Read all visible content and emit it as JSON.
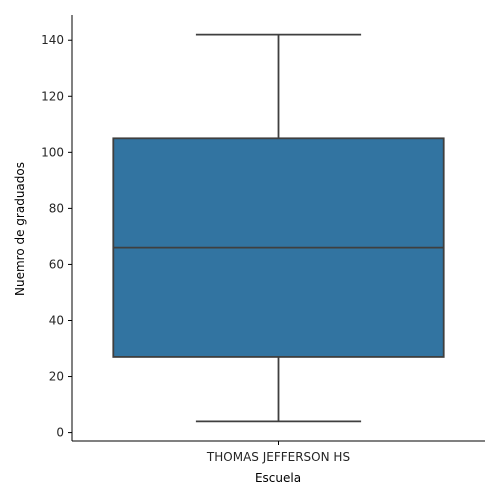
{
  "chart_data": {
    "type": "box",
    "xlabel": "Escuela",
    "ylabel": "Nuemro de graduados",
    "ylim": [
      -3,
      149
    ],
    "yticks": [
      0,
      20,
      40,
      60,
      80,
      100,
      120,
      140
    ],
    "yticks_labels": [
      "0",
      "20",
      "40",
      "60",
      "80",
      "100",
      "120",
      "140"
    ],
    "categories": [
      "THOMAS JEFFERSON HS"
    ],
    "boxes": [
      {
        "category": "THOMAS JEFFERSON HS",
        "min": 4,
        "q1": 27,
        "median": 66,
        "q3": 105,
        "max": 142
      }
    ],
    "colors": {
      "box_fill": "#3274a1",
      "line": "#3f3f3f",
      "axis": "#000000"
    },
    "grid": false
  }
}
